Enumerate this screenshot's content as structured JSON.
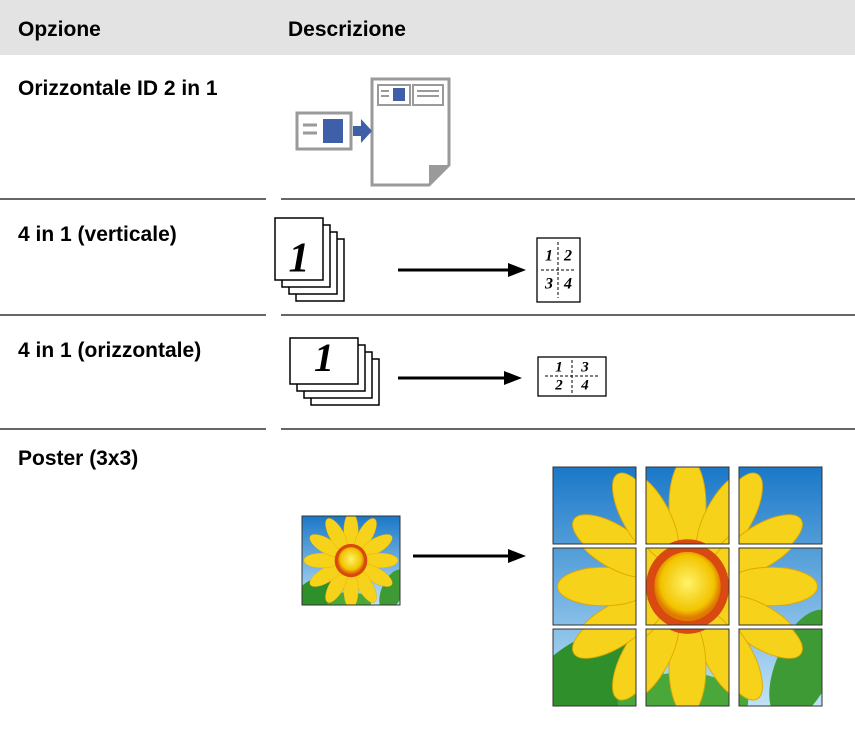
{
  "table": {
    "header": [
      "Opzione",
      "Descrizione"
    ],
    "rows": [
      [
        "Orizzontale ID 2 in 1"
      ],
      [
        "4 in 1 (verticale)"
      ],
      [
        "4 in 1 (orizzontale)"
      ],
      [
        "Poster (3x3)"
      ]
    ]
  },
  "figures": {
    "portrait_page": "1",
    "portrait_grid": [
      "1",
      "2",
      "3",
      "4"
    ],
    "landscape_page": "1",
    "landscape_grid": [
      "1",
      "3",
      "2",
      "4"
    ]
  }
}
